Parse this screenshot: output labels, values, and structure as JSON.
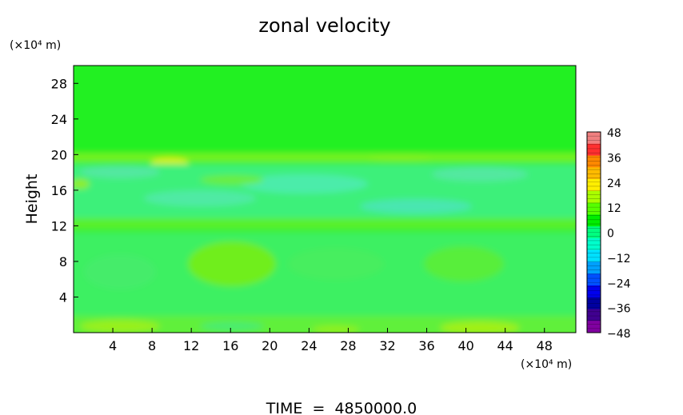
{
  "chart_data": {
    "type": "heatmap",
    "title": "zonal velocity",
    "ylabel": "Height",
    "y_unit": "(×10⁴ m)",
    "x_unit": "(×10⁴ m)",
    "footer": "TIME  =  4850000.0",
    "x_ticks": [
      4,
      8,
      12,
      16,
      20,
      24,
      28,
      32,
      36,
      40,
      44,
      48
    ],
    "y_ticks": [
      4,
      8,
      12,
      16,
      20,
      24,
      28
    ],
    "xlim": [
      0,
      51.2
    ],
    "ylim": [
      0,
      30
    ],
    "colorbar": {
      "ticks": [
        48,
        36,
        24,
        12,
        0,
        -12,
        -24,
        -36,
        -48
      ],
      "range": [
        -48,
        48
      ],
      "colors": [
        "#f08080",
        "#ff3030",
        "#ff8800",
        "#ffbb00",
        "#ffee00",
        "#aaff00",
        "#55ff00",
        "#00ee00",
        "#00ff80",
        "#00ffcc",
        "#00e0ff",
        "#00a0ff",
        "#0050ff",
        "#0000ee",
        "#0000a0",
        "#400090",
        "#8000a0"
      ]
    },
    "field_description_values": {
      "bands": [
        {
          "y": [
            20,
            30
          ],
          "value": 1
        },
        {
          "y": [
            19,
            20
          ],
          "value": 10
        },
        {
          "y": [
            13,
            19
          ],
          "value": -6
        },
        {
          "y": [
            11.5,
            13
          ],
          "value": 3
        },
        {
          "y": [
            2,
            11.5
          ],
          "value": -2
        },
        {
          "y": [
            0,
            2
          ],
          "value": 5
        }
      ]
    }
  }
}
